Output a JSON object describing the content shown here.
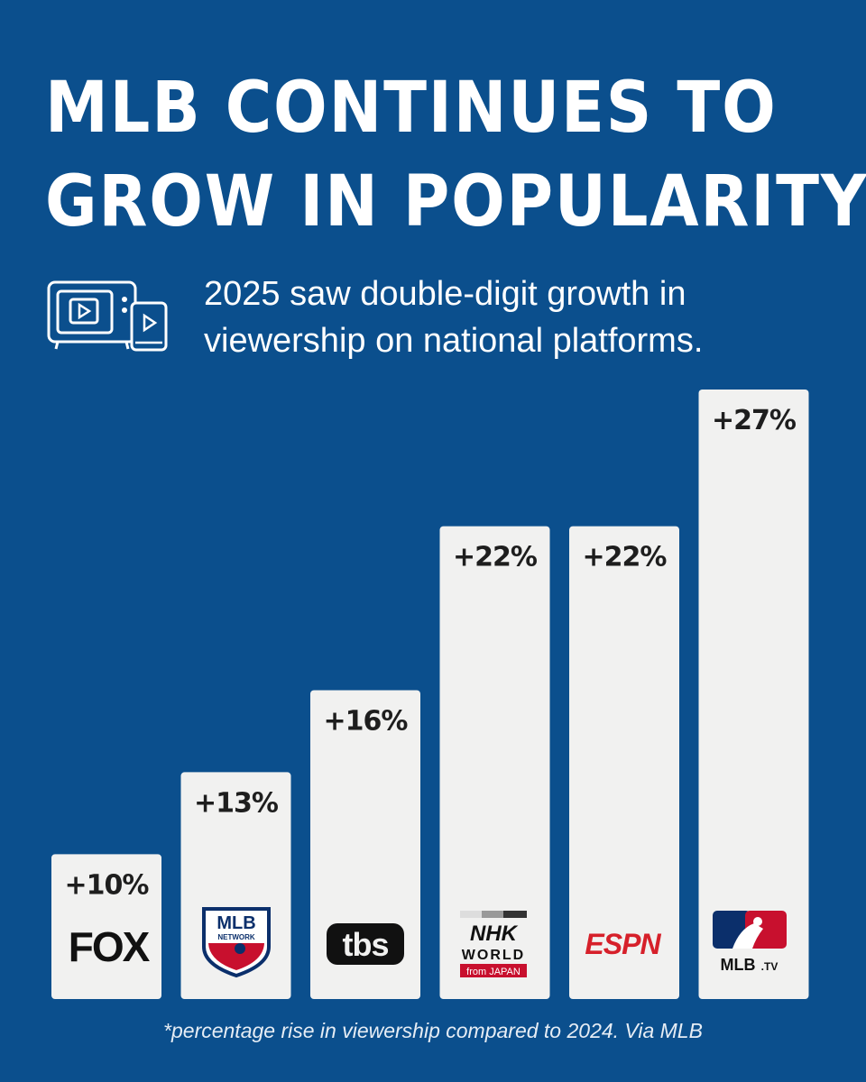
{
  "title_lines": [
    "MLB CONTINUES TO",
    "GROW IN POPULARITY"
  ],
  "subtitle_lines": [
    "2025 saw double-digit growth in",
    "viewership on national platforms."
  ],
  "icon": "tv-and-phone-video-icon",
  "footnote": "*percentage rise in viewership compared to 2024. Via MLB",
  "colors": {
    "background": "#0b4f8d",
    "bar": "#f1f1f0",
    "label": "#1e1e1e",
    "espn_red": "#d6202a",
    "mlb_blue": "#0b2f6b",
    "mlb_red": "#c8102e"
  },
  "logos": {
    "fox": "FOX",
    "mlb_network_top": "MLB",
    "mlb_network_bottom": "NETWORK",
    "tbs": "tbs",
    "nhk_top": "NHK",
    "nhk_middle": "WORLD",
    "nhk_bottom": "from JAPAN",
    "espn": "ESPN",
    "mlbtv_main": "MLB",
    "mlbtv_suffix": ".TV"
  },
  "chart_data": {
    "type": "bar",
    "title": "MLB CONTINUES TO GROW IN POPULARITY",
    "xlabel": "",
    "ylabel": "Percentage rise in viewership",
    "unit": "%",
    "categories": [
      "FOX",
      "MLB Network",
      "TBS",
      "NHK World",
      "ESPN",
      "MLB.TV"
    ],
    "values": [
      10,
      13,
      16,
      22,
      22,
      27
    ],
    "data_labels": [
      "+10%",
      "+13%",
      "+16%",
      "+22%",
      "+22%",
      "+27%"
    ],
    "ylim": [
      0,
      27
    ],
    "grid": false,
    "legend": "none"
  }
}
